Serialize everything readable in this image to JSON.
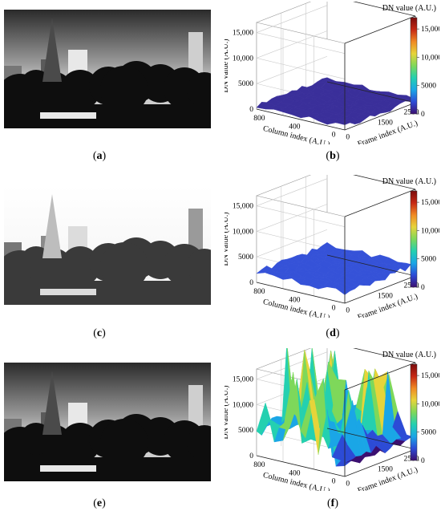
{
  "panels": [
    {
      "label": "a",
      "kind": "photo",
      "variant": "normal"
    },
    {
      "label": "b",
      "kind": "plot3d",
      "variant": "flat-dark"
    },
    {
      "label": "c",
      "kind": "photo",
      "variant": "overexposed"
    },
    {
      "label": "d",
      "kind": "plot3d",
      "variant": "flat-blue"
    },
    {
      "label": "e",
      "kind": "photo",
      "variant": "normal"
    },
    {
      "label": "f",
      "kind": "plot3d",
      "variant": "rough"
    }
  ],
  "plot_text": {
    "colorbar_title": "DN value (A.U.)",
    "z_label": "DN value (A.U.)",
    "x_label": "Column index (A.U.)",
    "y_label": "Frame index (A.U.)",
    "z_ticks": [
      "0",
      "5000",
      "10,000",
      "15,000"
    ],
    "x_ticks": [
      "800",
      "400",
      "0"
    ],
    "y_ticks": [
      "0",
      "1500",
      "2500"
    ],
    "colorbar_ticks": [
      "15,000",
      "10,000",
      "5000",
      "0"
    ]
  },
  "colors": {
    "colormap": [
      "#3b0f70",
      "#2c4bd6",
      "#1aa6e6",
      "#24d0b0",
      "#7ed85a",
      "#e6d43a",
      "#f08a24",
      "#c62814",
      "#7a0c0c"
    ],
    "flat_dark": "#3a2f9a",
    "flat_blue": "#3552d8"
  },
  "chart_data": [
    {
      "type": "surface3d",
      "panel": "b",
      "xlabel": "Column index (A.U.)",
      "ylabel": "Frame index (A.U.)",
      "zlabel": "DN value (A.U.)",
      "zlim": [
        0,
        17000
      ],
      "summary_z": {
        "min": 0,
        "max": 1500
      }
    },
    {
      "type": "surface3d",
      "panel": "d",
      "xlabel": "Column index (A.U.)",
      "ylabel": "Frame index (A.U.)",
      "zlabel": "DN value (A.U.)",
      "zlim": [
        0,
        17000
      ],
      "summary_z": {
        "min": 0,
        "max": 3000
      }
    },
    {
      "type": "surface3d",
      "panel": "f",
      "xlabel": "Column index (A.U.)",
      "ylabel": "Frame index (A.U.)",
      "zlabel": "DN value (A.U.)",
      "zlim": [
        0,
        17000
      ],
      "summary_z": {
        "min": 0,
        "max": 16500
      }
    }
  ]
}
